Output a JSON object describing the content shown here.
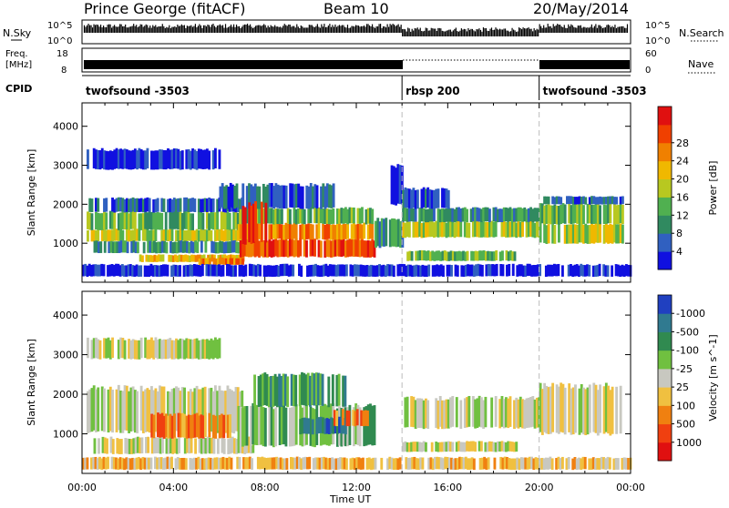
{
  "header": {
    "station": "Prince George (fitACF)",
    "beam": "Beam 10",
    "date": "20/May/2014"
  },
  "strips": {
    "nsky_label": "N.Sky",
    "nsky_ticks": [
      "10^5",
      "10^0"
    ],
    "nsearch_label": "N.Search",
    "nsearch_ticks": [
      "10^5",
      "10^0"
    ],
    "freq_label_1": "Freq.",
    "freq_label_2": "[MHz]",
    "freq_ticks": [
      "18",
      "8"
    ],
    "nave_label": "Nave",
    "nave_ticks": [
      "60",
      "0"
    ],
    "cpid_label": "CPID"
  },
  "cpid_segments": [
    {
      "label": "twofsound -3503",
      "start": 0,
      "end": 14
    },
    {
      "label": "rbsp 200",
      "start": 14,
      "end": 20
    },
    {
      "label": "twofsound -3503",
      "start": 20,
      "end": 24
    }
  ],
  "chart_data": [
    {
      "type": "heatmap",
      "name": "power",
      "xlabel": "Time UT",
      "ylabel": "Slant Range [km]",
      "xlim": [
        0,
        24
      ],
      "ylim": [
        0,
        4600
      ],
      "xticks": [
        "00:00",
        "04:00",
        "08:00",
        "12:00",
        "16:00",
        "20:00",
        "00:00"
      ],
      "yticks": [
        1000,
        2000,
        3000,
        4000
      ],
      "colorbar": {
        "label": "Power [dB]",
        "ticks": [
          "4",
          "8",
          "12",
          "16",
          "20",
          "24",
          "28"
        ],
        "colors": [
          "#1010e0",
          "#3060c0",
          "#308a60",
          "#50b050",
          "#b8c820",
          "#f0b800",
          "#f08000",
          "#f04000",
          "#e01010"
        ]
      },
      "bands": [
        {
          "t0": 0.2,
          "t1": 7.0,
          "r0": 1050,
          "r1": 1350,
          "level": 4
        },
        {
          "t0": 0.2,
          "t1": 7.0,
          "r0": 1350,
          "r1": 1800,
          "level": 3
        },
        {
          "t0": 0.2,
          "t1": 7.0,
          "r0": 1800,
          "r1": 2150,
          "level": 1
        },
        {
          "t0": 0.5,
          "t1": 7.5,
          "r0": 750,
          "r1": 1050,
          "level": 2
        },
        {
          "t0": 2.5,
          "t1": 7.0,
          "r0": 520,
          "r1": 700,
          "level": 5
        },
        {
          "t0": 5.0,
          "t1": 7.0,
          "r0": 450,
          "r1": 620,
          "level": 6
        },
        {
          "t0": 6.8,
          "t1": 12.8,
          "r0": 650,
          "r1": 1100,
          "level": 7
        },
        {
          "t0": 6.8,
          "t1": 12.8,
          "r0": 1100,
          "r1": 1500,
          "level": 6
        },
        {
          "t0": 6.8,
          "t1": 12.8,
          "r0": 1500,
          "r1": 1900,
          "level": 3
        },
        {
          "t0": 6.0,
          "t1": 11.0,
          "r0": 1900,
          "r1": 2500,
          "level": 1
        },
        {
          "t0": 7.0,
          "t1": 8.0,
          "r0": 1000,
          "r1": 2000,
          "level": 8
        },
        {
          "t0": 12.8,
          "t1": 14.0,
          "r0": 900,
          "r1": 1600,
          "level": 2
        },
        {
          "t0": 13.5,
          "t1": 14.0,
          "r0": 2000,
          "r1": 3000,
          "level": 0
        },
        {
          "t0": 14.0,
          "t1": 20.0,
          "r0": 1150,
          "r1": 1550,
          "level": 4
        },
        {
          "t0": 14.0,
          "t1": 20.0,
          "r0": 1550,
          "r1": 1900,
          "level": 2
        },
        {
          "t0": 14.0,
          "t1": 16.0,
          "r0": 1900,
          "r1": 2400,
          "level": 1
        },
        {
          "t0": 14.2,
          "t1": 19.0,
          "r0": 550,
          "r1": 800,
          "level": 3
        },
        {
          "t0": 20.0,
          "t1": 23.6,
          "r0": 1000,
          "r1": 1500,
          "level": 4
        },
        {
          "t0": 20.0,
          "t1": 23.6,
          "r0": 1500,
          "r1": 2000,
          "level": 3
        },
        {
          "t0": 20.0,
          "t1": 23.6,
          "r0": 2000,
          "r1": 2200,
          "level": 1
        },
        {
          "t0": 0.2,
          "t1": 6.0,
          "r0": 2900,
          "r1": 3400,
          "level": 0
        },
        {
          "t0": 0.0,
          "t1": 24.0,
          "r0": 150,
          "r1": 450,
          "level": 0
        }
      ]
    },
    {
      "type": "heatmap",
      "name": "velocity",
      "xlabel": "Time UT",
      "ylabel": "Slant Range [km]",
      "xlim": [
        0,
        24
      ],
      "ylim": [
        0,
        4600
      ],
      "xticks": [
        "00:00",
        "04:00",
        "08:00",
        "12:00",
        "16:00",
        "20:00",
        "00:00"
      ],
      "yticks": [
        1000,
        2000,
        3000,
        4000
      ],
      "colorbar": {
        "label": "Velocity [m s^-1]",
        "ticks": [
          "1000",
          "500",
          "100",
          "25",
          "-25",
          "-100",
          "-500",
          "-1000"
        ],
        "colors": [
          "#2040c0",
          "#307a90",
          "#308a50",
          "#70c040",
          "#c8c8c0",
          "#f0c040",
          "#f08010",
          "#f04010",
          "#e01010"
        ]
      },
      "bands": [
        {
          "t0": 0.2,
          "t1": 7.0,
          "r0": 1050,
          "r1": 2150,
          "level": 4
        },
        {
          "t0": 0.5,
          "t1": 7.5,
          "r0": 500,
          "r1": 900,
          "level": 4
        },
        {
          "t0": 3.0,
          "t1": 6.5,
          "r0": 900,
          "r1": 1500,
          "level": 6
        },
        {
          "t0": 6.8,
          "t1": 12.8,
          "r0": 700,
          "r1": 1700,
          "level": 3
        },
        {
          "t0": 7.5,
          "t1": 11.5,
          "r0": 1700,
          "r1": 2500,
          "level": 2
        },
        {
          "t0": 9.5,
          "t1": 11.5,
          "r0": 1000,
          "r1": 1400,
          "level": 1
        },
        {
          "t0": 11.0,
          "t1": 12.5,
          "r0": 1200,
          "r1": 1600,
          "level": 6
        },
        {
          "t0": 14.0,
          "t1": 20.0,
          "r0": 1150,
          "r1": 1900,
          "level": 4
        },
        {
          "t0": 14.0,
          "t1": 19.0,
          "r0": 550,
          "r1": 800,
          "level": 4
        },
        {
          "t0": 20.0,
          "t1": 23.6,
          "r0": 1000,
          "r1": 2200,
          "level": 4
        },
        {
          "t0": 0.2,
          "t1": 6.0,
          "r0": 2900,
          "r1": 3400,
          "level": 4
        },
        {
          "t0": 0.0,
          "t1": 24.0,
          "r0": 100,
          "r1": 400,
          "level": 5
        }
      ]
    }
  ]
}
